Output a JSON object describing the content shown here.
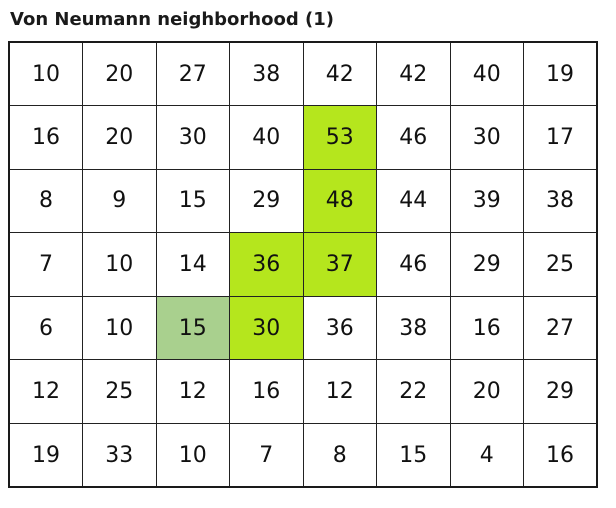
{
  "title": "Von Neumann neighborhood (1)",
  "colors": {
    "highlight_path": "#b5e61d",
    "highlight_start": "#a9d08e"
  },
  "grid": {
    "rows": [
      [
        10,
        20,
        27,
        38,
        42,
        42,
        40,
        19
      ],
      [
        16,
        20,
        30,
        40,
        53,
        46,
        30,
        17
      ],
      [
        8,
        9,
        15,
        29,
        48,
        44,
        39,
        38
      ],
      [
        7,
        10,
        14,
        36,
        37,
        46,
        29,
        25
      ],
      [
        6,
        10,
        15,
        30,
        36,
        38,
        16,
        27
      ],
      [
        12,
        25,
        12,
        16,
        12,
        22,
        20,
        29
      ],
      [
        19,
        33,
        10,
        7,
        8,
        15,
        4,
        16
      ]
    ],
    "highlighted_path": [
      [
        1,
        4
      ],
      [
        2,
        4
      ],
      [
        3,
        3
      ],
      [
        3,
        4
      ],
      [
        4,
        3
      ]
    ],
    "highlighted_start": [
      [
        4,
        2
      ]
    ]
  }
}
